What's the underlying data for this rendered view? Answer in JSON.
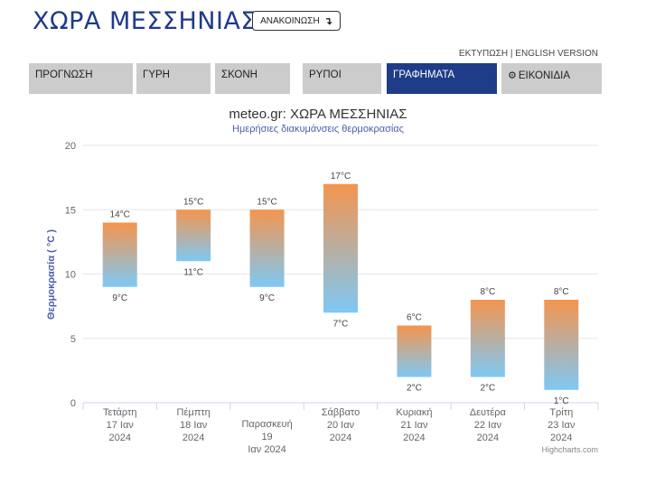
{
  "header": {
    "title": "ΧΩΡΑ ΜΕΣΣΗΝΙΑΣ",
    "announce_label": "ΑΝΑΚΟΙΝΩΣΗ",
    "announce_icon": "arrow-down-icon"
  },
  "toplinks": {
    "print": "ΕΚΤΥΠΩΣΗ",
    "separator": "|",
    "english": "ENGLISH VERSION"
  },
  "tabs": [
    {
      "label": "ΠΡΟΓΝΩΣΗ",
      "active": false
    },
    {
      "label": "ΓΥΡΗ",
      "active": false
    },
    {
      "label": "ΣΚΟΝΗ",
      "active": false
    },
    {
      "label": "ΡΥΠΟΙ",
      "active": false
    },
    {
      "label": "ΓΡΑΦΗΜΑΤΑ",
      "active": true
    },
    {
      "label": "ΕΙΚΟΝΙΔΙΑ",
      "active": false,
      "icon": "gear-icon"
    }
  ],
  "colors": {
    "accent": "#1f3c88",
    "tab_bg": "#cccccc",
    "bar_top": "#f4954e",
    "bar_bottom": "#7ec8f4",
    "title_blue": "#1f3a8a"
  },
  "chart_data": {
    "type": "columnrange",
    "title": "meteo.gr: ΧΩΡΑ ΜΕΣΣΗΝΙΑΣ",
    "subtitle": "Ημερήσιες διακυμάνσεις θερμοκρασίας",
    "ylabel": "Θερμοκρασία ( °C )",
    "ylim": [
      0,
      20
    ],
    "yticks": [
      0,
      5,
      10,
      15,
      20
    ],
    "grid": true,
    "categories": [
      [
        "Τετάρτη",
        "17 Ιαν",
        "2024"
      ],
      [
        "Πέμπτη",
        "18 Ιαν",
        "2024"
      ],
      [
        "Παρασκευή",
        "19",
        "Ιαν 2024"
      ],
      [
        "Σάββατο",
        "20 Ιαν",
        "2024"
      ],
      [
        "Κυριακή",
        "21 Ιαν",
        "2024"
      ],
      [
        "Δευτέρα",
        "22 Ιαν",
        "2024"
      ],
      [
        "Τρίτη",
        "23 Ιαν",
        "2024"
      ]
    ],
    "low": [
      9,
      11,
      9,
      7,
      2,
      2,
      1
    ],
    "high": [
      14,
      15,
      15,
      17,
      6,
      8,
      8
    ],
    "unit": "°C",
    "credits": "Highcharts.com"
  }
}
